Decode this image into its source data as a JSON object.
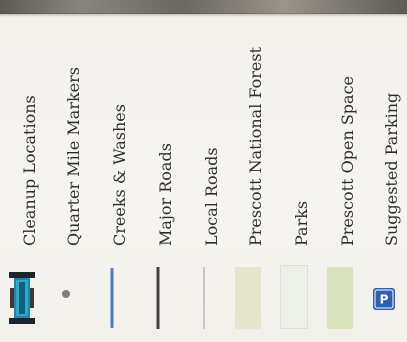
{
  "legend": {
    "items": [
      {
        "label": "Cleanup Locations",
        "symbol": "cleanup-location-icon",
        "color": "#1a6e8e"
      },
      {
        "label": "Quarter Mile Markers",
        "symbol": "marker-dot-icon",
        "color": "#7e7e7e"
      },
      {
        "label": "Creeks & Washes",
        "symbol": "creek-line",
        "color": "#4b78c2"
      },
      {
        "label": "Major Roads",
        "symbol": "major-road-line",
        "color": "#444444"
      },
      {
        "label": "Local Roads",
        "symbol": "local-road-line",
        "color": "#c6c6c6"
      },
      {
        "label": "Prescott National Forest",
        "symbol": "forest-fill",
        "color": "#e3e6cd"
      },
      {
        "label": "Parks",
        "symbol": "parks-fill",
        "color": "#eef0ea"
      },
      {
        "label": "Prescott Open Space",
        "symbol": "open-space-fill",
        "color": "#d8e3bd"
      },
      {
        "label": "Suggested Parking",
        "symbol": "parking-icon",
        "color": "#2f5fb0",
        "glyph": "P"
      }
    ]
  }
}
